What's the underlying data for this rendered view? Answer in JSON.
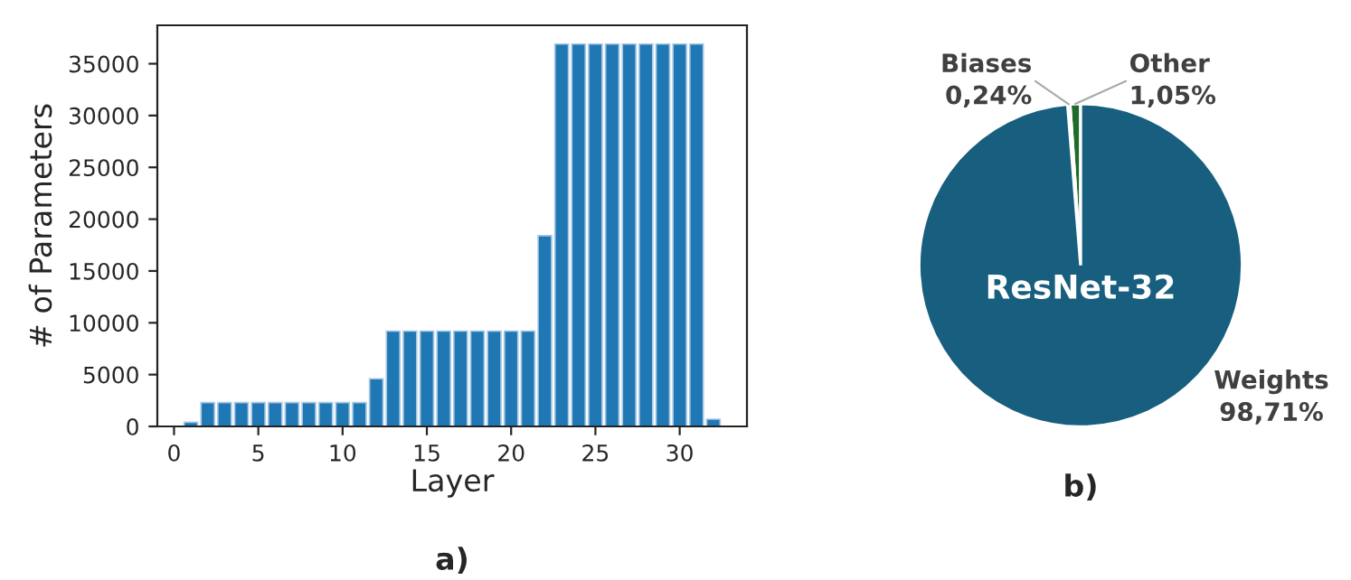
{
  "chart_data": [
    {
      "type": "bar",
      "xlabel": "Layer",
      "ylabel": "# of Parameters",
      "annotations": [
        "a)"
      ],
      "x": [
        1,
        2,
        3,
        4,
        5,
        6,
        7,
        8,
        9,
        10,
        11,
        12,
        13,
        14,
        15,
        16,
        17,
        18,
        19,
        20,
        21,
        22,
        23,
        24,
        25,
        26,
        27,
        28,
        29,
        30,
        31,
        32
      ],
      "values": [
        400,
        2300,
        2300,
        2300,
        2300,
        2300,
        2300,
        2300,
        2300,
        2300,
        2300,
        4600,
        9200,
        9200,
        9200,
        9200,
        9200,
        9200,
        9200,
        9200,
        9200,
        18400,
        36900,
        36900,
        36900,
        36900,
        36900,
        36900,
        36900,
        36900,
        36900,
        700
      ],
      "color": "#1f77b4",
      "xlim": [
        -0.99,
        33.99
      ],
      "xticks": [
        0,
        5,
        10,
        15,
        20,
        25,
        30
      ],
      "ylim": [
        0,
        38707
      ],
      "yticks": [
        0,
        5000,
        10000,
        15000,
        20000,
        25000,
        30000,
        35000
      ],
      "grid": false
    },
    {
      "type": "pie",
      "categories": [
        "Other",
        "Biases",
        "Weights"
      ],
      "values": [
        1.05,
        0.24,
        98.71
      ],
      "value_labels": [
        "1,05%",
        "0,24%",
        "98,71%"
      ],
      "colors": [
        "#1e6b2a",
        "#ffffff",
        "#175e7f"
      ],
      "annotations": [
        "ResNet-32",
        "b)"
      ]
    }
  ]
}
